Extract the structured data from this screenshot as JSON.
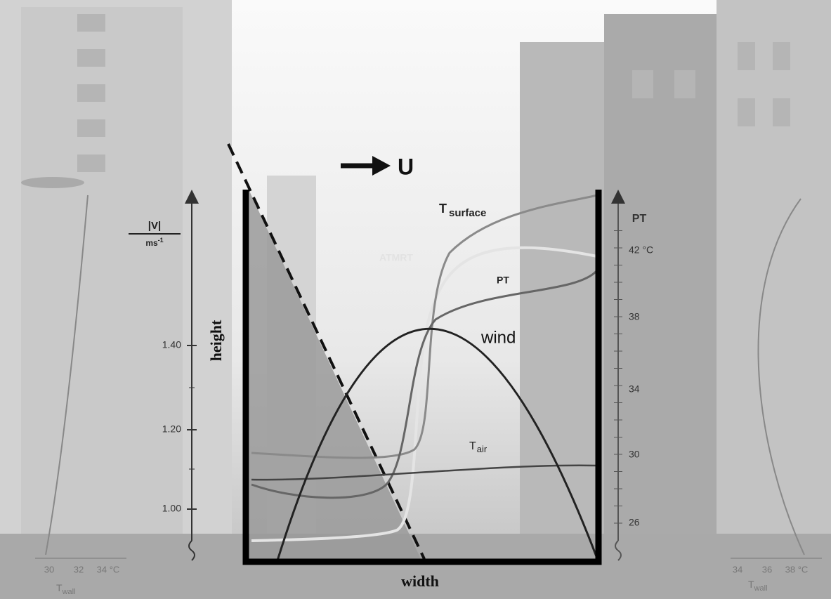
{
  "arrow_label": "U",
  "curve_labels": {
    "t_surface": {
      "main": "T",
      "sub": "surface"
    },
    "atmrt": "ATMRT",
    "pt": "PT",
    "wind": "wind",
    "t_air": {
      "main": "T",
      "sub": "air"
    }
  },
  "left_axis": {
    "unit_top": "|V|",
    "unit_bottom": {
      "main": "ms",
      "sup": "-1"
    },
    "title": "height",
    "ticks": [
      "1.40",
      "1.20",
      "1.00"
    ]
  },
  "right_axis": {
    "title": "PT",
    "ticks": [
      "42 °C",
      "38",
      "34",
      "30",
      "26"
    ]
  },
  "x_label": "width",
  "left_wall": {
    "ticks": [
      "30",
      "32",
      "34 °C"
    ],
    "label": {
      "main": "T",
      "sub": "wall"
    }
  },
  "right_wall": {
    "ticks": [
      "34",
      "36",
      "38 °C"
    ],
    "label": {
      "main": "T",
      "sub": "wall"
    }
  }
}
